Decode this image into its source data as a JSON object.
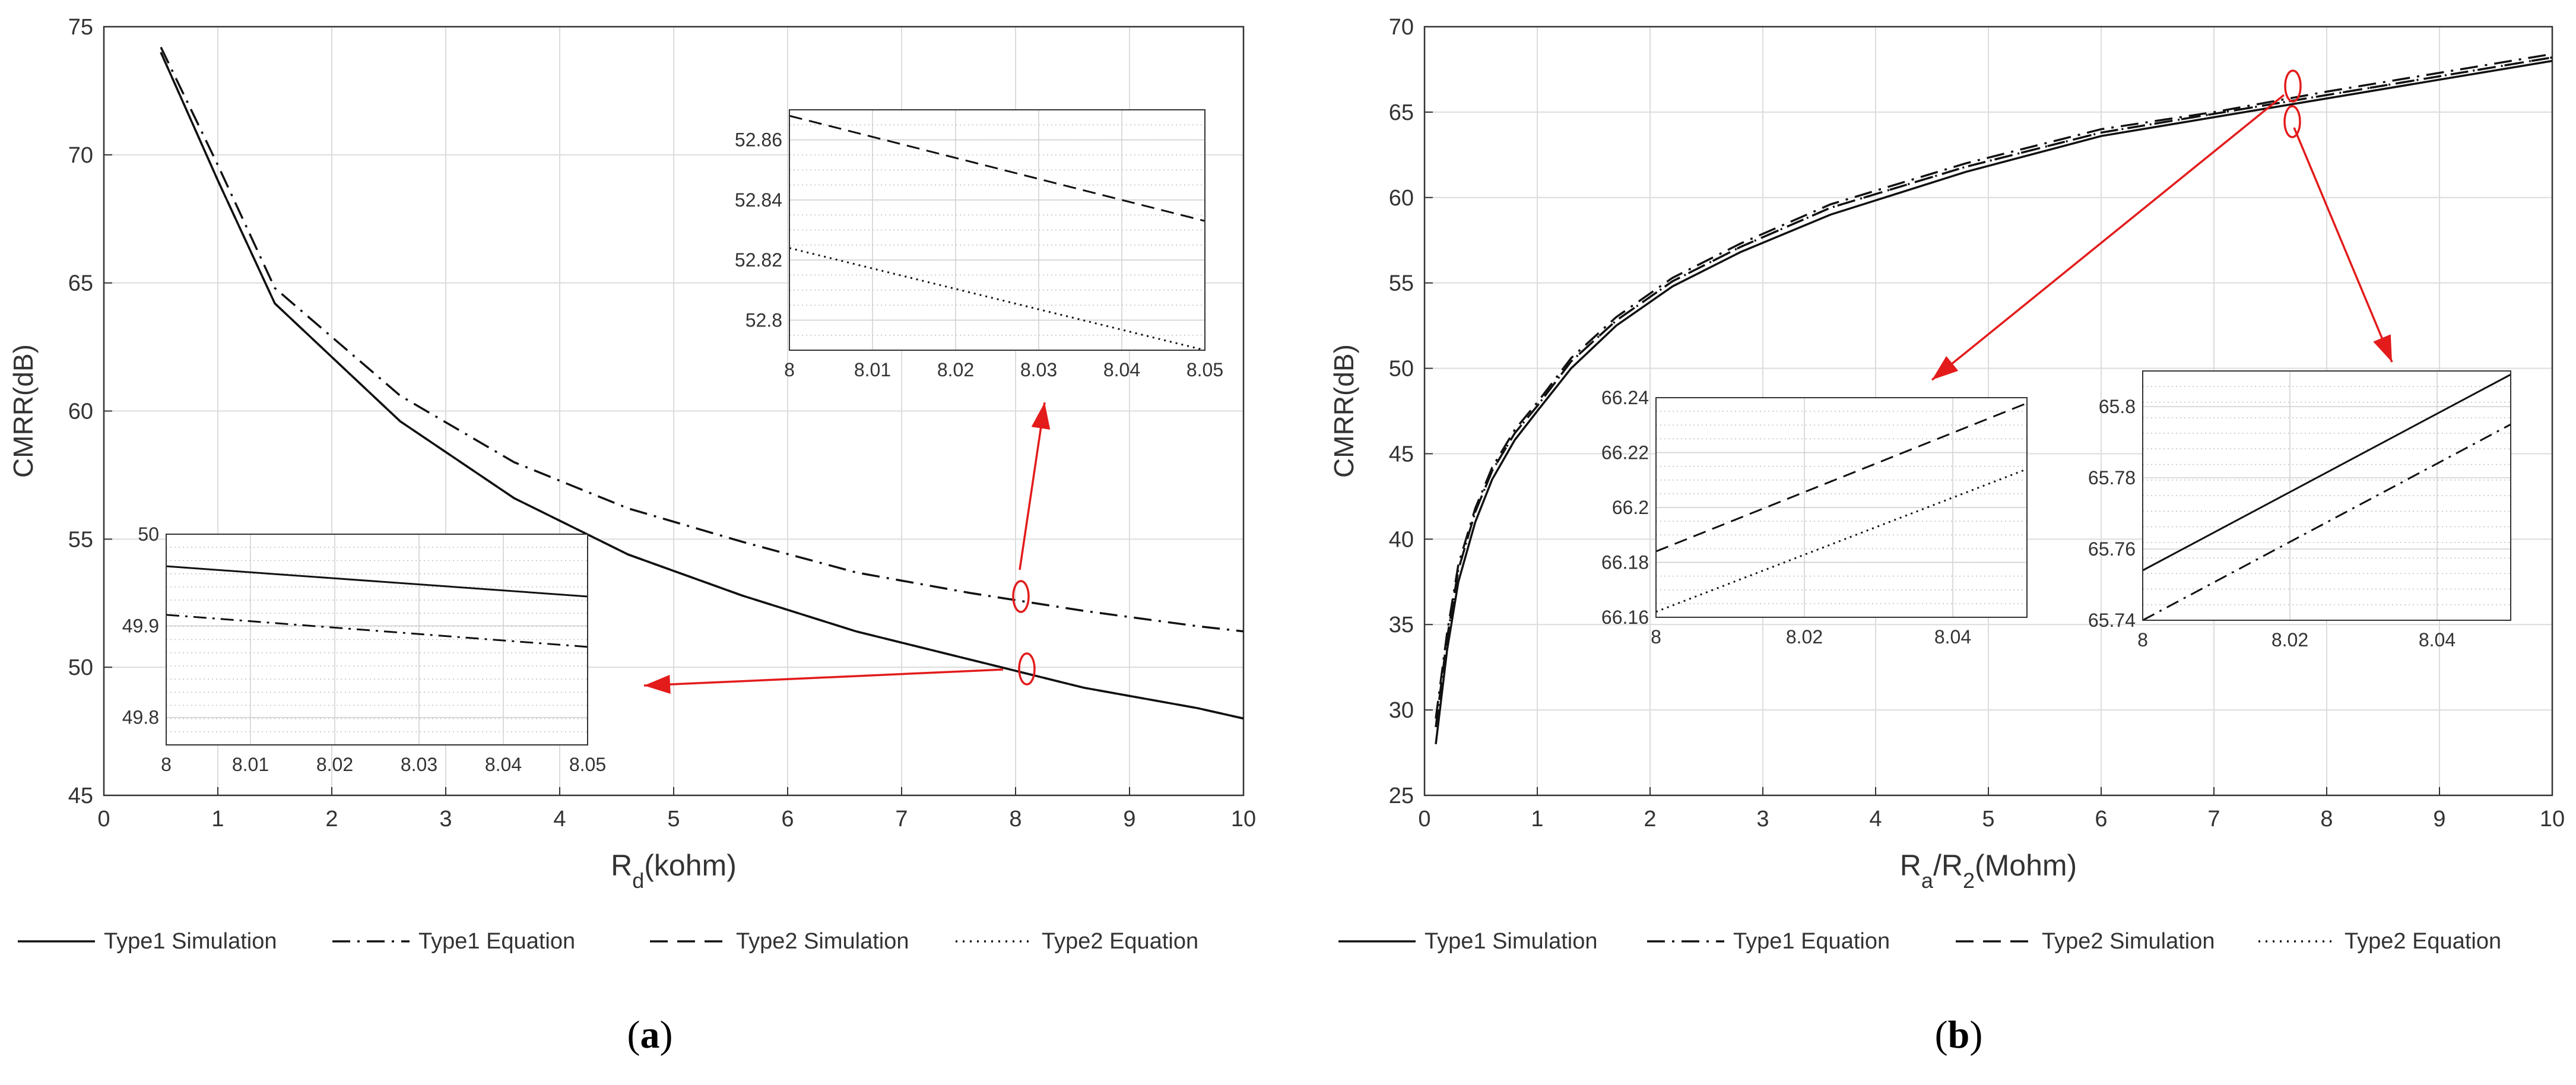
{
  "chart_data": [
    {
      "id": "a",
      "type": "line",
      "caption_letter": "a",
      "ylabel": "CMRR(dB)",
      "xlabel_main": "R",
      "xlabel_sub": "d",
      "xlabel_rest": "(kohm)",
      "xlim": [
        0,
        10
      ],
      "ylim": [
        45,
        75
      ],
      "xticks": [
        "0",
        "1",
        "2",
        "3",
        "4",
        "5",
        "6",
        "7",
        "8",
        "9",
        "10"
      ],
      "yticks": [
        "45",
        "50",
        "55",
        "60",
        "65",
        "70",
        "75"
      ],
      "grid": true,
      "legend": [
        "Type1 Simulation",
        "Type1 Equation",
        "Type2 Simulation",
        "Type2 Equation"
      ],
      "x": [
        0.5,
        1.0,
        1.5,
        2.6,
        3.6,
        4.6,
        5.6,
        6.6,
        7.6,
        8.6,
        9.6,
        10.0
      ],
      "series": [
        {
          "name": "Type1 Simulation",
          "style": "solid",
          "values": [
            74.0,
            69.0,
            64.2,
            59.6,
            56.6,
            54.4,
            52.8,
            51.4,
            50.3,
            49.2,
            48.4,
            48.0
          ]
        },
        {
          "name": "Type1 Equation",
          "style": "dashdot",
          "values": [
            74.2,
            69.6,
            64.8,
            60.6,
            58.0,
            56.2,
            54.9,
            53.7,
            52.9,
            52.2,
            51.6,
            51.4
          ]
        },
        {
          "name": "Type2 Simulation",
          "style": "dashed",
          "values": [
            74.0,
            69.0,
            64.2,
            59.6,
            56.6,
            54.4,
            52.8,
            51.4,
            50.3,
            49.2,
            48.4,
            48.0
          ]
        },
        {
          "name": "Type2 Equation",
          "style": "dotted",
          "values": [
            74.0,
            69.0,
            64.2,
            59.6,
            56.6,
            54.4,
            52.8,
            51.4,
            50.3,
            49.2,
            48.4,
            48.0
          ]
        }
      ],
      "insets": [
        {
          "id": "a-top",
          "xlim": [
            8,
            8.05
          ],
          "ylim": [
            52.79,
            52.87
          ],
          "xticks": [
            "8",
            "8.01",
            "8.02",
            "8.03",
            "8.04",
            "8.05"
          ],
          "yticks": [
            "52.8",
            "52.82",
            "52.84",
            "52.86"
          ],
          "lines": [
            {
              "style": "dashed",
              "x": [
                8,
                8.05
              ],
              "y": [
                52.868,
                52.833
              ]
            },
            {
              "style": "dotted",
              "x": [
                8,
                8.05
              ],
              "y": [
                52.824,
                52.79
              ]
            }
          ]
        },
        {
          "id": "a-bottom",
          "xlim": [
            8,
            8.05
          ],
          "ylim": [
            49.77,
            50.0
          ],
          "xticks": [
            "8",
            "8.01",
            "8.02",
            "8.03",
            "8.04",
            "8.05"
          ],
          "yticks": [
            "49.8",
            "49.9",
            "50"
          ],
          "lines": [
            {
              "style": "solid",
              "x": [
                8,
                8.05
              ],
              "y": [
                49.965,
                49.932
              ]
            },
            {
              "style": "dashdot",
              "x": [
                8,
                8.05
              ],
              "y": [
                49.912,
                49.877
              ]
            }
          ]
        }
      ]
    },
    {
      "id": "b",
      "type": "line",
      "caption_letter": "b",
      "ylabel": "CMRR(dB)",
      "xlabel_main": "R",
      "xlabel_sub": "a",
      "xlabel_rest": "/R",
      "xlabel_sub2": "2",
      "xlabel_rest2": "(Mohm)",
      "xlim": [
        0,
        10
      ],
      "ylim": [
        25,
        70
      ],
      "xticks": [
        "0",
        "1",
        "2",
        "3",
        "4",
        "5",
        "6",
        "7",
        "8",
        "9",
        "10"
      ],
      "yticks": [
        "25",
        "30",
        "35",
        "40",
        "45",
        "50",
        "55",
        "60",
        "65",
        "70"
      ],
      "grid": true,
      "legend": [
        "Type1 Simulation",
        "Type1 Equation",
        "Type2 Simulation",
        "Type2 Equation"
      ],
      "x": [
        0.1,
        0.2,
        0.3,
        0.45,
        0.6,
        0.8,
        1.0,
        1.3,
        1.7,
        2.2,
        2.8,
        3.6,
        4.8,
        6.0,
        7.0,
        8.0,
        9.0,
        10.0
      ],
      "series": [
        {
          "name": "Type1 Simulation",
          "style": "solid",
          "values": [
            28.0,
            33.5,
            37.5,
            41.0,
            43.5,
            45.8,
            47.5,
            50.0,
            52.5,
            54.8,
            56.8,
            59.0,
            61.5,
            63.6,
            64.7,
            65.8,
            66.9,
            68.0
          ]
        },
        {
          "name": "Type1 Equation",
          "style": "dashdot",
          "values": [
            29.5,
            34.5,
            38.5,
            41.8,
            44.2,
            46.4,
            48.0,
            50.6,
            53.0,
            55.3,
            57.3,
            59.6,
            62.0,
            64.0,
            65.0,
            66.2,
            67.3,
            68.4
          ]
        },
        {
          "name": "Type2 Simulation",
          "style": "dashed",
          "values": [
            29.0,
            34.2,
            38.2,
            41.6,
            44.0,
            46.2,
            47.8,
            50.4,
            52.8,
            55.1,
            57.1,
            59.4,
            61.8,
            63.8,
            64.9,
            66.0,
            67.1,
            68.2
          ]
        },
        {
          "name": "Type2 Equation",
          "style": "dotted",
          "values": [
            29.0,
            34.2,
            38.2,
            41.6,
            44.0,
            46.2,
            47.8,
            50.4,
            52.8,
            55.1,
            57.1,
            59.4,
            61.8,
            63.8,
            64.9,
            66.0,
            67.1,
            68.2
          ]
        }
      ],
      "insets": [
        {
          "id": "b-left",
          "xlim": [
            8,
            8.05
          ],
          "ylim": [
            66.16,
            66.24
          ],
          "xticks": [
            "8",
            "8.02",
            "8.04"
          ],
          "yticks": [
            "66.16",
            "66.18",
            "66.2",
            "66.22",
            "66.24"
          ],
          "lines": [
            {
              "style": "dashed",
              "x": [
                8,
                8.05
              ],
              "y": [
                66.184,
                66.238
              ]
            },
            {
              "style": "dotted",
              "x": [
                8,
                8.05
              ],
              "y": [
                66.162,
                66.214
              ]
            }
          ]
        },
        {
          "id": "b-right",
          "xlim": [
            8,
            8.05
          ],
          "ylim": [
            65.74,
            65.81
          ],
          "xticks": [
            "8",
            "8.02",
            "8.04"
          ],
          "yticks": [
            "65.74",
            "65.76",
            "65.78",
            "65.8"
          ],
          "lines": [
            {
              "style": "solid",
              "x": [
                8,
                8.05
              ],
              "y": [
                65.754,
                65.809
              ]
            },
            {
              "style": "dashdot",
              "x": [
                8,
                8.05
              ],
              "y": [
                65.74,
                65.795
              ]
            }
          ]
        }
      ]
    }
  ]
}
